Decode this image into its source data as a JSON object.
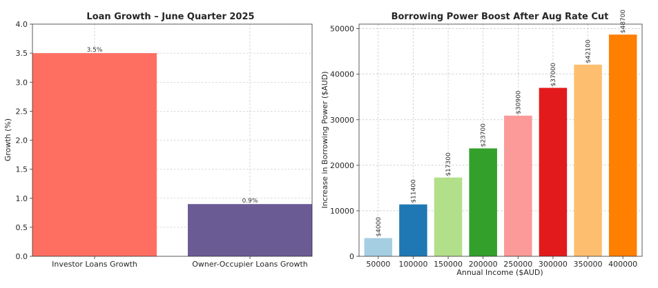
{
  "chart_data": [
    {
      "type": "bar",
      "title": "Loan Growth – June Quarter 2025",
      "xlabel": "",
      "ylabel": "Growth (%)",
      "categories": [
        "Investor Loans Growth",
        "Owner-Occupier Loans Growth"
      ],
      "values": [
        3.5,
        0.9
      ],
      "data_labels": [
        "3.5%",
        "0.9%"
      ],
      "colors": [
        "#ff6f61",
        "#6b5b95"
      ],
      "ylim": [
        0,
        4.0
      ],
      "yticks": [
        0.0,
        0.5,
        1.0,
        1.5,
        2.0,
        2.5,
        3.0,
        3.5,
        4.0
      ],
      "ytick_labels": [
        "0.0",
        "0.5",
        "1.0",
        "1.5",
        "2.0",
        "2.5",
        "3.0",
        "3.5",
        "4.0"
      ],
      "grid": true
    },
    {
      "type": "bar",
      "title": "Borrowing Power Boost After Aug Rate Cut",
      "xlabel": "Annual Income ($AUD)",
      "ylabel": "Increase in Borrowing Power ($AUD)",
      "categories": [
        "50000",
        "100000",
        "150000",
        "200000",
        "250000",
        "300000",
        "350000",
        "400000"
      ],
      "values": [
        4000,
        11400,
        17300,
        23700,
        30900,
        37000,
        42100,
        48700
      ],
      "data_labels": [
        "$4000",
        "$11400",
        "$17300",
        "$23700",
        "$30900",
        "$37000",
        "$42100",
        "$48700"
      ],
      "colors": [
        "#a6cee3",
        "#1f78b4",
        "#b2df8a",
        "#33a02c",
        "#fb9a99",
        "#e31a1c",
        "#fdbf6f",
        "#ff7f00"
      ],
      "ylim": [
        0,
        51000
      ],
      "yticks": [
        0,
        10000,
        20000,
        30000,
        40000,
        50000
      ],
      "ytick_labels": [
        "0",
        "10000",
        "20000",
        "30000",
        "40000",
        "50000"
      ],
      "grid": true
    }
  ]
}
